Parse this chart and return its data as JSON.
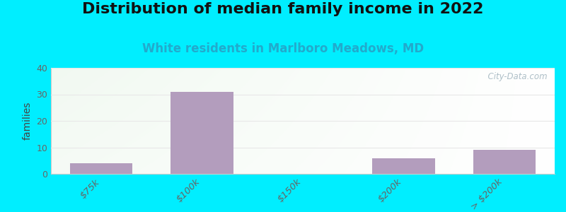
{
  "title": "Distribution of median family income in 2022",
  "subtitle": "White residents in Marlboro Meadows, MD",
  "categories": [
    "$75k",
    "$100k",
    "$150k",
    "$200k",
    "> $200k"
  ],
  "values": [
    4,
    31,
    0,
    6,
    9
  ],
  "bar_color": "#b39dbd",
  "background_outer": "#00eeff",
  "background_inner_topleft": "#d8eed8",
  "background_inner_topright": "#e8f0f0",
  "background_inner_bottom": "#ffffff",
  "ylabel": "families",
  "ylim": [
    0,
    40
  ],
  "yticks": [
    0,
    10,
    20,
    30,
    40
  ],
  "grid_color": "#e8e8e8",
  "title_fontsize": 16,
  "subtitle_fontsize": 12,
  "subtitle_color": "#22aacc",
  "watermark_text": "  City-Data.com",
  "watermark_color": "#a0b4be",
  "tick_color": "#666666"
}
